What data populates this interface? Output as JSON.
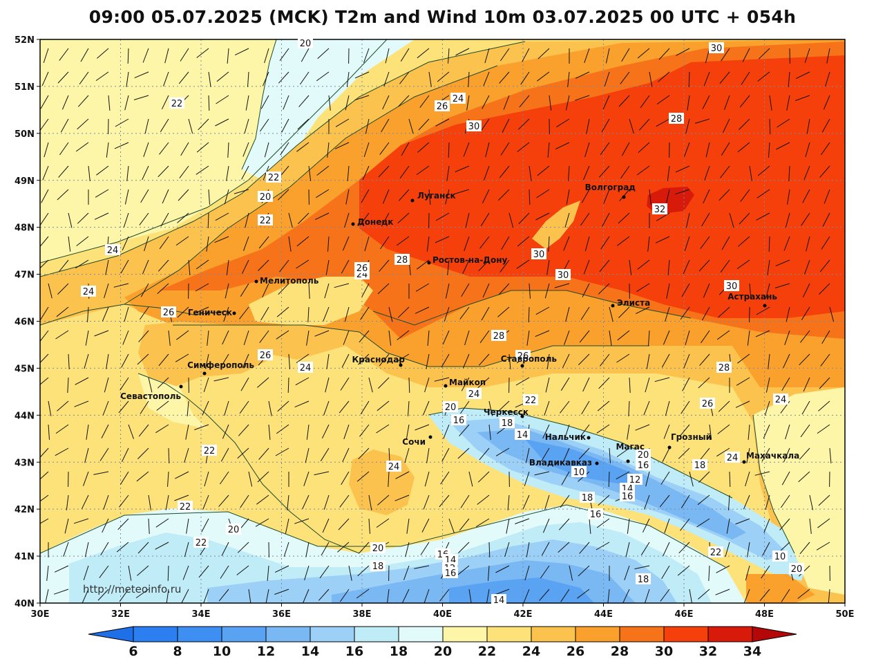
{
  "title": "09:00 05.07.2025 (MCK) T2m and Wind 10m 03.07.2025 00 UTC + 054h",
  "watermark": "http://meteoinfo.ru",
  "lat_ticks": [
    "52N",
    "51N",
    "50N",
    "49N",
    "48N",
    "47N",
    "46N",
    "45N",
    "44N",
    "43N",
    "42N",
    "41N",
    "40N"
  ],
  "lon_ticks": [
    "30E",
    "32E",
    "34E",
    "36E",
    "38E",
    "40E",
    "42E",
    "44E",
    "46E",
    "48E",
    "50E"
  ],
  "legend": {
    "ticks": [
      "6",
      "8",
      "10",
      "12",
      "14",
      "16",
      "18",
      "20",
      "22",
      "24",
      "26",
      "28",
      "30",
      "32",
      "34"
    ],
    "colors": [
      "#1f6fe8",
      "#2b7ff0",
      "#3e8ff2",
      "#5aa2f2",
      "#7ab8f4",
      "#9dd0f6",
      "#c0ecf8",
      "#e2fbfa",
      "#fdf6a8",
      "#fde27a",
      "#fcc24e",
      "#f9a12c",
      "#f77319",
      "#f5400b",
      "#d71a0a",
      "#b40808"
    ]
  },
  "cities": [
    {
      "name": "Луганск"
    },
    {
      "name": "Донецк"
    },
    {
      "name": "Волгоград"
    },
    {
      "name": "Ростов-на-Дону"
    },
    {
      "name": "Мелитополь"
    },
    {
      "name": "Геническ"
    },
    {
      "name": "Элиста"
    },
    {
      "name": "Астрахань"
    },
    {
      "name": "Краснодар"
    },
    {
      "name": "Ставрополь"
    },
    {
      "name": "Симферополь"
    },
    {
      "name": "Севастополь"
    },
    {
      "name": "Майкоп"
    },
    {
      "name": "Черкесск"
    },
    {
      "name": "Сочи"
    },
    {
      "name": "Нальчик"
    },
    {
      "name": "Магас"
    },
    {
      "name": "Грозный"
    },
    {
      "name": "Владикавказ"
    },
    {
      "name": "Махачкала"
    }
  ],
  "contour_labels": [
    "20",
    "22",
    "24",
    "26",
    "30",
    "22",
    "20",
    "22",
    "24",
    "24",
    "24",
    "26",
    "28",
    "30",
    "26",
    "24",
    "28",
    "30",
    "32",
    "30",
    "28",
    "30",
    "24",
    "26",
    "28",
    "26",
    "24",
    "20",
    "16",
    "18",
    "14",
    "24",
    "22",
    "26",
    "22",
    "20",
    "16",
    "24",
    "18",
    "10",
    "12",
    "14",
    "16",
    "18",
    "16",
    "22",
    "20",
    "22",
    "20",
    "16",
    "18",
    "14",
    "12",
    "16",
    "10",
    "14",
    "18",
    "20",
    "22"
  ]
}
